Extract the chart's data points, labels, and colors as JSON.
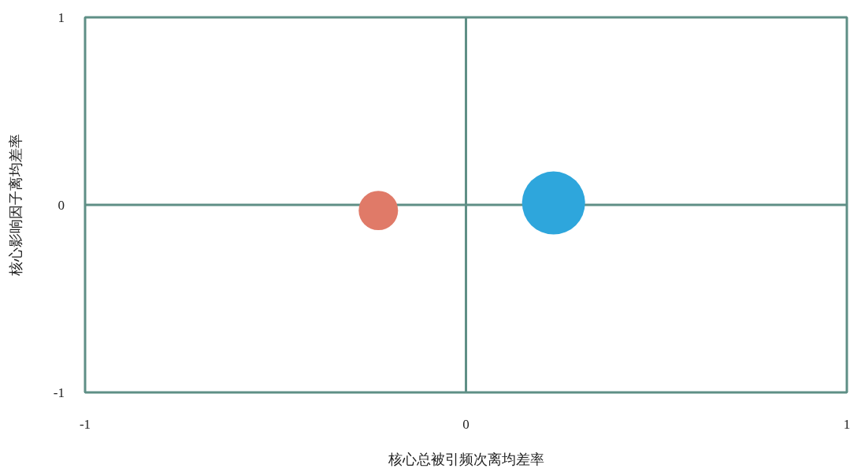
{
  "chart_data": {
    "type": "bubble",
    "xlabel": "核心总被引频次离均差率",
    "ylabel": "核心影响因子离均差率",
    "x": [
      -0.23,
      0.23
    ],
    "series": [
      {
        "values": [
          -0.03,
          0.01
        ],
        "sizes": [
          0.39,
          1
        ],
        "colors": [
          "#e07a68",
          "#2ea6dc"
        ]
      }
    ],
    "xlim": [
      -1,
      1
    ],
    "ylim": [
      -1,
      1
    ],
    "xticks": [
      -1,
      0,
      1
    ],
    "yticks": [
      -1,
      0,
      1
    ],
    "grid": true
  }
}
